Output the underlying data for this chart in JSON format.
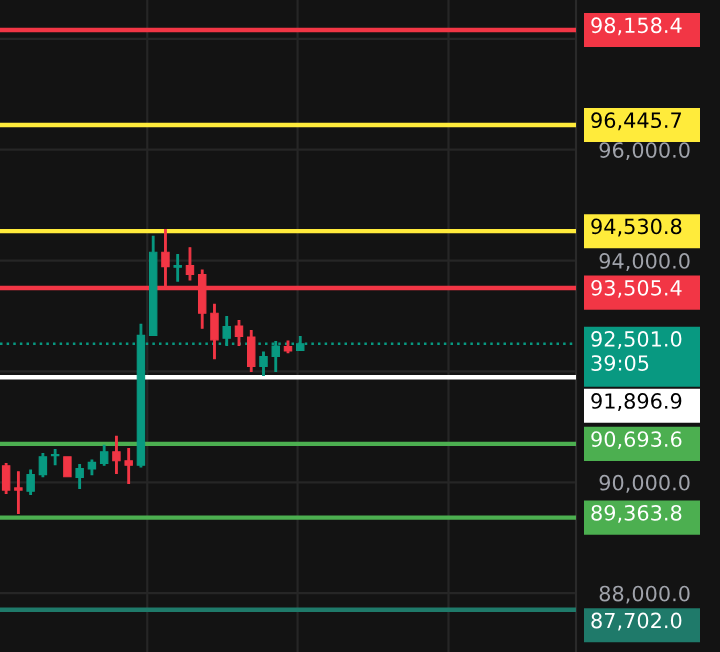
{
  "chart_data": {
    "type": "candlestick",
    "categories": [
      null,
      null,
      null,
      null,
      null,
      null,
      null,
      null,
      null,
      null,
      null,
      null,
      null,
      null,
      null,
      null,
      null,
      null,
      null,
      null,
      null,
      null,
      null,
      null,
      null,
      null,
      null,
      null,
      null,
      null,
      null,
      null,
      null,
      null,
      null,
      null,
      null,
      null,
      null,
      null,
      null,
      null,
      null,
      null,
      null,
      null,
      null
    ],
    "ohlc": [
      [
        90300,
        90340,
        89800,
        89860
      ],
      [
        89900,
        90190,
        89440,
        89860
      ],
      [
        89840,
        90220,
        89780,
        90140
      ],
      [
        90140,
        90520,
        90100,
        90460
      ],
      [
        90480,
        90590,
        90320,
        90500
      ],
      [
        90460,
        90460,
        90100,
        90100
      ],
      [
        90090,
        90320,
        89890,
        90250
      ],
      [
        90240,
        90400,
        90140,
        90360
      ],
      [
        90340,
        90670,
        90310,
        90550
      ],
      [
        90550,
        90830,
        90160,
        90390
      ],
      [
        90390,
        90610,
        89980,
        90310
      ],
      [
        90310,
        92850,
        90280,
        92650
      ],
      [
        92650,
        94440,
        92650,
        94150
      ],
      [
        94150,
        94560,
        93500,
        93890
      ],
      [
        93880,
        94110,
        93630,
        93910
      ],
      [
        93910,
        94230,
        93650,
        93750
      ],
      [
        93750,
        93830,
        92780,
        93050
      ],
      [
        93050,
        93210,
        92230,
        92570
      ],
      [
        92600,
        92990,
        92470,
        92810
      ],
      [
        92820,
        92920,
        92470,
        92630
      ],
      [
        92620,
        92740,
        92000,
        92090
      ],
      [
        92090,
        92350,
        91930,
        92270
      ],
      [
        92270,
        92540,
        92000,
        92460
      ],
      [
        92450,
        92550,
        92340,
        92370
      ],
      [
        92380,
        92630,
        92380,
        92501
      ],
      null,
      null,
      null,
      null,
      null,
      null,
      null,
      null,
      null,
      null,
      null,
      null,
      null,
      null,
      null,
      null,
      null,
      null,
      null,
      null,
      null,
      null
    ],
    "colors": [
      "#f23645",
      "#f23645",
      "#089981",
      "#089981",
      "#089981",
      "#f23645",
      "#089981",
      "#089981",
      "#089981",
      "#f23645",
      "#f23645",
      "#089981",
      "#089981",
      "#f23645",
      "#089981",
      "#f23645",
      "#f23645",
      "#f23645",
      "#089981",
      "#f23645",
      "#f23645",
      "#089981",
      "#089981",
      "#f23645",
      "#089981",
      null,
      null,
      null,
      null,
      null,
      null,
      null,
      null,
      null,
      null,
      null,
      null,
      null,
      null,
      null,
      null,
      null,
      null,
      null,
      null,
      null,
      null
    ],
    "ylim": [
      86940,
      98700
    ],
    "yticks": [
      {
        "value": 88000,
        "label": "88,000.0"
      },
      {
        "value": 90000,
        "label": "90,000.0"
      },
      {
        "value": 92000,
        "label": null
      },
      {
        "value": 94000,
        "label": "94,000.0"
      },
      {
        "value": 96000,
        "label": "96,000.0"
      },
      {
        "value": 98000,
        "label": null
      }
    ],
    "grid": true,
    "ref_lines": [
      {
        "axis": "y",
        "value": 98158.4,
        "label": "98,158.4",
        "color": "#f23645"
      },
      {
        "axis": "y",
        "value": 96445.7,
        "label": "96,445.7",
        "color": "#ffeb3b"
      },
      {
        "axis": "y",
        "value": 94530.8,
        "label": "94,530.8",
        "color": "#ffeb3b"
      },
      {
        "axis": "y",
        "value": 93505.4,
        "label": "93,505.4",
        "color": "#f23645"
      },
      {
        "axis": "y",
        "value": 92501.0,
        "label": "92,501.0\n39:05",
        "color": "#089981",
        "line_style": "dotted"
      },
      {
        "axis": "y",
        "value": 91896.9,
        "label": "91,896.9",
        "color": "#ffffff"
      },
      {
        "axis": "y",
        "value": 90693.6,
        "label": "90,693.6",
        "color": "#4caf50"
      },
      {
        "axis": "y",
        "value": 89363.8,
        "label": "89,363.8",
        "color": "#4caf50"
      },
      {
        "axis": "y",
        "value": 87702.0,
        "label": "87,702.0",
        "color": "#1f7a6a"
      }
    ]
  }
}
